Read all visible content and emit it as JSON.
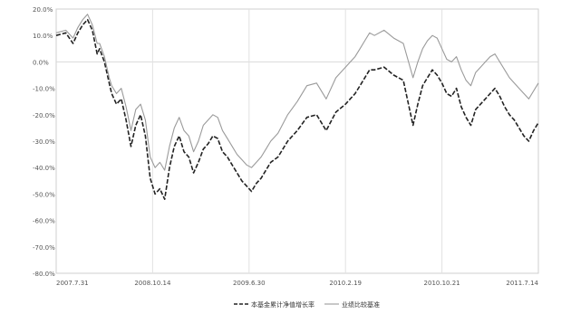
{
  "chart_data": {
    "type": "line",
    "title": "",
    "xlabel": "",
    "ylabel": "",
    "x_ticks": [
      "2007.7.31",
      "2008.10.14",
      "2009.6.30",
      "2010.2.19",
      "2010.10.21",
      "2011.7.14"
    ],
    "y_ticks": [
      "20.0%",
      "10.0%",
      "0.0%",
      "-10.0%",
      "-20.0%",
      "-30.0%",
      "-40.0%",
      "-50.0%",
      "-60.0%",
      "-70.0%",
      "-80.0%"
    ],
    "ylim": [
      -80,
      20
    ],
    "xlim": [
      0,
      100
    ],
    "grid": true,
    "legend_position": "bottom",
    "series": [
      {
        "name": "",
        "legend_text": "本基金累计净值增长率",
        "color": "#222222",
        "style": "dashed",
        "x": [
          0,
          2,
          3.5,
          4.5,
          5.5,
          6.5,
          7.5,
          8.5,
          9,
          10,
          11,
          11.5,
          12.5,
          13.5,
          14.5,
          15.5,
          16.5,
          17.5,
          18.5,
          19.5,
          20.5,
          21.5,
          22.5,
          23.5,
          24.5,
          25.5,
          26.5,
          27.5,
          28.5,
          29.5,
          30.5,
          31.5,
          32.5,
          33.5,
          34.5,
          35.5,
          36.5,
          37.5,
          38.5,
          39.5,
          40.5,
          41.5,
          42.5,
          43.5,
          44.5,
          46,
          48,
          50,
          52,
          54,
          56,
          58,
          60,
          62,
          63,
          64,
          65,
          66,
          68,
          70,
          72,
          74,
          75,
          76,
          77,
          78,
          79,
          80,
          81,
          82,
          83,
          84,
          85,
          86,
          87,
          88,
          89,
          90,
          91,
          92,
          93,
          94,
          95,
          96,
          97,
          98,
          99,
          100
        ],
        "values": [
          10,
          11,
          7,
          11,
          14,
          16,
          12,
          3,
          5,
          0,
          -8,
          -12,
          -16,
          -14,
          -22,
          -32,
          -24,
          -20,
          -28,
          -44,
          -50,
          -48,
          -52,
          -40,
          -32,
          -28,
          -34,
          -36,
          -42,
          -38,
          -33,
          -31,
          -28,
          -29,
          -34,
          -36,
          -39,
          -42,
          -45,
          -47,
          -49,
          -46,
          -44,
          -41,
          -38,
          -36,
          -30,
          -26,
          -21,
          -20,
          -26,
          -19,
          -16,
          -12,
          -9,
          -6,
          -3,
          -3,
          -2,
          -5,
          -7,
          -24,
          -16,
          -9,
          -6,
          -3,
          -5,
          -8,
          -12,
          -13,
          -10,
          -17,
          -21,
          -24,
          -18,
          -16,
          -14,
          -12,
          -10,
          -13,
          -17,
          -20,
          -22,
          -25,
          -28,
          -30,
          -26,
          -23
        ]
      },
      {
        "name": "",
        "legend_text": "业绩比较基准",
        "color": "#9a9a9a",
        "style": "solid",
        "x": [
          0,
          2,
          3.5,
          4.5,
          5.5,
          6.5,
          7.5,
          8.5,
          9,
          10,
          11,
          11.5,
          12.5,
          13.5,
          14.5,
          15.5,
          16.5,
          17.5,
          18.5,
          19.5,
          20.5,
          21.5,
          22.5,
          23.5,
          24.5,
          25.5,
          26.5,
          27.5,
          28.5,
          29.5,
          30.5,
          31.5,
          32.5,
          33.5,
          34.5,
          35.5,
          36.5,
          37.5,
          38.5,
          39.5,
          40.5,
          41.5,
          42.5,
          43.5,
          44.5,
          46,
          48,
          50,
          52,
          54,
          56,
          58,
          60,
          62,
          63,
          64,
          65,
          66,
          68,
          70,
          72,
          74,
          75,
          76,
          77,
          78,
          79,
          80,
          81,
          82,
          83,
          84,
          85,
          86,
          87,
          88,
          89,
          90,
          91,
          92,
          93,
          94,
          95,
          96,
          97,
          98,
          99,
          100
        ],
        "values": [
          11,
          12,
          9,
          13,
          16,
          18,
          14,
          7,
          7,
          2,
          -6,
          -9,
          -12,
          -10,
          -17,
          -26,
          -18,
          -16,
          -22,
          -36,
          -40,
          -38,
          -41,
          -32,
          -25,
          -21,
          -26,
          -28,
          -34,
          -30,
          -24,
          -22,
          -20,
          -21,
          -26,
          -29,
          -32,
          -35,
          -37,
          -39,
          -40,
          -38,
          -36,
          -33,
          -30,
          -27,
          -20,
          -15,
          -9,
          -8,
          -14,
          -6,
          -2,
          2,
          5,
          8,
          11,
          10,
          12,
          9,
          7,
          -6,
          0,
          5,
          8,
          10,
          9,
          5,
          1,
          0,
          2,
          -3,
          -7,
          -9,
          -4,
          -2,
          0,
          2,
          3,
          0,
          -3,
          -6,
          -8,
          -10,
          -12,
          -14,
          -11,
          -8
        ]
      }
    ]
  }
}
